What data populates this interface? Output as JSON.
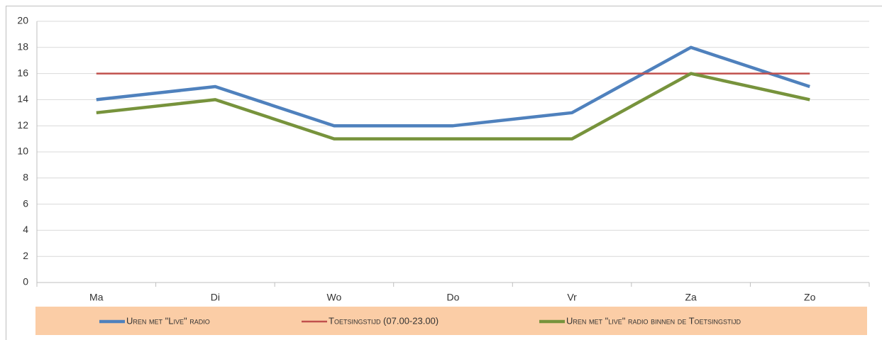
{
  "chart_data": {
    "type": "line",
    "categories": [
      "Ma",
      "Di",
      "Wo",
      "Do",
      "Vr",
      "Za",
      "Zo"
    ],
    "series": [
      {
        "name": "Uren met \"Live\" radio",
        "color": "#4f81bd",
        "values": [
          14,
          15,
          12,
          12,
          13,
          18,
          15
        ]
      },
      {
        "name": "Toetsingstijd (07.00-23.00)",
        "color": "#c0504d",
        "values": [
          16,
          16,
          16,
          16,
          16,
          16,
          16
        ]
      },
      {
        "name": "Uren met \"live\" radio binnen de Toetsingstijd",
        "color": "#77933c",
        "values": [
          13,
          14,
          11,
          11,
          11,
          16,
          14
        ]
      }
    ],
    "ylim": [
      0,
      20
    ],
    "yticks": [
      0,
      2,
      4,
      6,
      8,
      10,
      12,
      14,
      16,
      18,
      20
    ],
    "grid": true,
    "legend": "bottom"
  }
}
